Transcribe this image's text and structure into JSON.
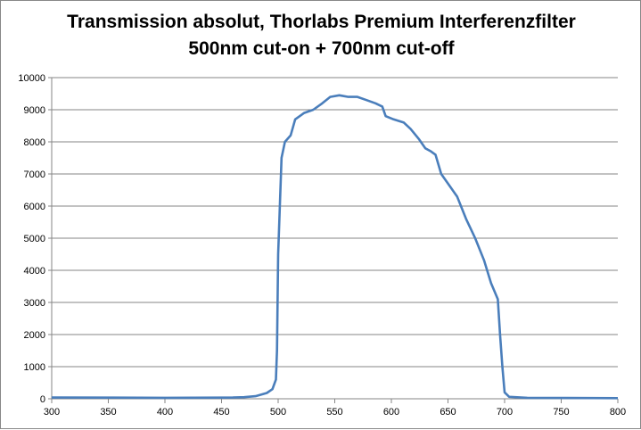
{
  "chart_data": {
    "type": "line",
    "title": "Transmission absolut, Thorlabs Premium Interferenzfilter",
    "subtitle": "500nm cut-on + 700nm cut-off",
    "xlabel": "",
    "ylabel": "",
    "xlim": [
      300,
      800
    ],
    "ylim": [
      0,
      10000
    ],
    "x_ticks": [
      300,
      350,
      400,
      450,
      500,
      550,
      600,
      650,
      700,
      750,
      800
    ],
    "y_ticks": [
      0,
      1000,
      2000,
      3000,
      4000,
      5000,
      6000,
      7000,
      8000,
      9000,
      10000
    ],
    "grid": "horizontal",
    "legend": "none",
    "color": "#4a7ebb",
    "series": [
      {
        "x": [
          300,
          350,
          400,
          450,
          460,
          470,
          480,
          490,
          495,
          498,
          499,
          500,
          503,
          506,
          511,
          515,
          523,
          531,
          539,
          546,
          554,
          562,
          570,
          578,
          586,
          592,
          595,
          602,
          611,
          617,
          624,
          630,
          635,
          639,
          644,
          650,
          658,
          666,
          674,
          682,
          688,
          694,
          696,
          698,
          700,
          704,
          720,
          800
        ],
        "y": [
          40,
          35,
          30,
          35,
          40,
          50,
          80,
          180,
          300,
          600,
          1500,
          4500,
          7500,
          8000,
          8200,
          8700,
          8900,
          9000,
          9200,
          9400,
          9450,
          9400,
          9400,
          9300,
          9200,
          9100,
          8800,
          8700,
          8600,
          8400,
          8100,
          7800,
          7700,
          7600,
          7000,
          6700,
          6300,
          5600,
          5000,
          4300,
          3600,
          3100,
          2000,
          1000,
          200,
          60,
          30,
          20
        ]
      }
    ]
  }
}
